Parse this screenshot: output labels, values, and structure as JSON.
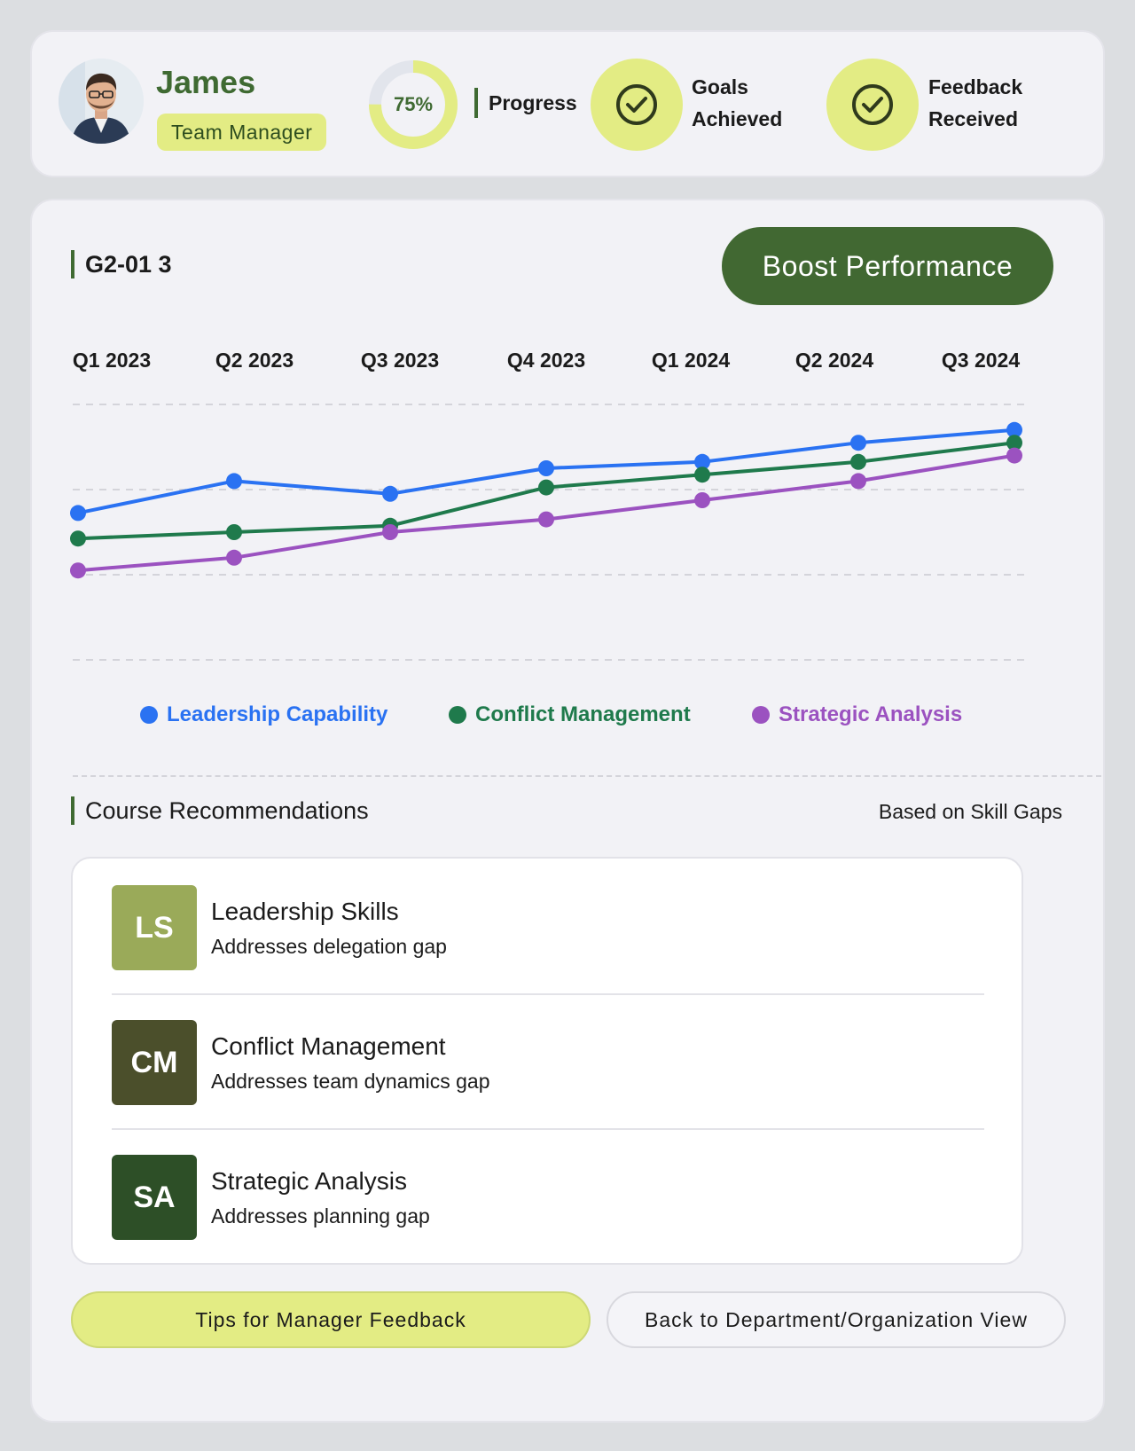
{
  "profile": {
    "name": "James",
    "role": "Team Manager",
    "progress": {
      "value": 75,
      "display": "75%",
      "label": "Progress"
    },
    "stats": [
      {
        "line1": "Goals",
        "line2": "Achieved",
        "icon": "check-circle-icon"
      },
      {
        "line1": "Feedback",
        "line2": "Received",
        "icon": "check-circle-icon"
      }
    ]
  },
  "main": {
    "chart_title": "G2-01 3",
    "boost_label": "Boost Performance"
  },
  "colors": {
    "brand_green": "#416832",
    "accent_lime": "#e3ec84",
    "leadership": "#2a72f2",
    "conflict": "#1f7a4c",
    "strategic": "#9b52c0"
  },
  "chart_data": {
    "type": "line",
    "categories": [
      "Q1 2023",
      "Q2 2023",
      "Q3 2023",
      "Q4 2023",
      "Q1 2024",
      "Q2 2024",
      "Q3 2024"
    ],
    "series": [
      {
        "name": "Leadership Capability",
        "color": "#2a72f2",
        "values": [
          2.3,
          2.8,
          2.6,
          3.0,
          3.1,
          3.4,
          3.6
        ]
      },
      {
        "name": "Conflict Management",
        "color": "#1f7a4c",
        "values": [
          1.9,
          2.0,
          2.1,
          2.7,
          2.9,
          3.1,
          3.4
        ]
      },
      {
        "name": "Strategic Analysis",
        "color": "#9b52c0",
        "values": [
          1.4,
          1.6,
          2.0,
          2.2,
          2.5,
          2.8,
          3.2
        ]
      }
    ],
    "ylim": [
      0,
      4
    ],
    "grid": true,
    "legend_position": "bottom"
  },
  "courses": {
    "title": "Course Recommendations",
    "subtitle": "Based on Skill Gaps",
    "items": [
      {
        "badge": "LS",
        "name": "Leadership Skills",
        "desc": "Addresses delegation gap",
        "color": "#9aaa59"
      },
      {
        "badge": "CM",
        "name": "Conflict Management",
        "desc": "Addresses team dynamics gap",
        "color": "#4b4f2b"
      },
      {
        "badge": "SA",
        "name": "Strategic Analysis",
        "desc": "Addresses planning gap",
        "color": "#2d4f27"
      }
    ]
  },
  "actions": {
    "tips_label": "Tips for Manager Feedback",
    "back_label": "Back to Department/Organization View"
  }
}
